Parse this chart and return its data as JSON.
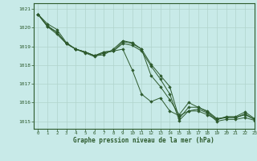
{
  "title": "Graphe pression niveau de la mer (hPa)",
  "bg_color": "#c8eae8",
  "grid_color": "#b0d4cc",
  "line_color": "#2d5a2d",
  "marker_color": "#2d5a2d",
  "xlim": [
    -0.5,
    23
  ],
  "ylim": [
    1014.6,
    1021.3
  ],
  "yticks": [
    1015,
    1016,
    1017,
    1018,
    1019,
    1020,
    1021
  ],
  "xticks": [
    0,
    1,
    2,
    3,
    4,
    5,
    6,
    7,
    8,
    9,
    10,
    11,
    12,
    13,
    14,
    15,
    16,
    17,
    18,
    19,
    20,
    21,
    22,
    23
  ],
  "series": [
    [
      1020.7,
      1020.2,
      1019.9,
      1019.2,
      1018.85,
      1018.7,
      1018.5,
      1018.55,
      1018.85,
      1019.3,
      1019.2,
      1018.85,
      1018.05,
      1017.45,
      1016.85,
      1015.15,
      1015.75,
      1015.75,
      1015.55,
      1015.15,
      1015.2,
      1015.2,
      1015.35,
      1015.1
    ],
    [
      1020.7,
      1020.1,
      1019.75,
      1019.15,
      1018.85,
      1018.65,
      1018.45,
      1018.65,
      1018.75,
      1018.85,
      1017.75,
      1016.45,
      1016.05,
      1016.25,
      1015.55,
      1015.3,
      1015.55,
      1015.55,
      1015.35,
      1015.1,
      1015.2,
      1015.2,
      1015.4,
      1015.1
    ],
    [
      1020.7,
      1020.05,
      1019.65,
      1019.15,
      1018.85,
      1018.7,
      1018.5,
      1018.7,
      1018.75,
      1019.25,
      1019.15,
      1018.85,
      1017.45,
      1016.85,
      1016.15,
      1015.35,
      1016.0,
      1015.75,
      1015.5,
      1015.1,
      1015.25,
      1015.25,
      1015.5,
      1015.15
    ],
    [
      1020.7,
      1020.05,
      1019.75,
      1019.15,
      1018.85,
      1018.7,
      1018.5,
      1018.7,
      1018.75,
      1019.15,
      1019.05,
      1018.75,
      1017.95,
      1017.25,
      1016.45,
      1015.05,
      1015.55,
      1015.65,
      1015.45,
      1015.0,
      1015.1,
      1015.1,
      1015.2,
      1015.05
    ]
  ]
}
